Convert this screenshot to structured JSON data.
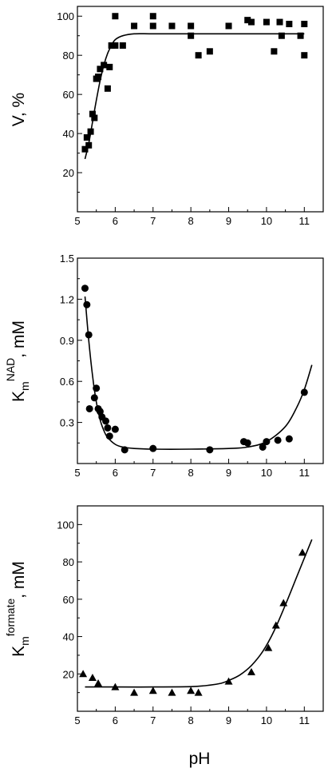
{
  "chart_data": [
    {
      "type": "scatter",
      "title": "",
      "xlabel": "",
      "ylabel": "V, %",
      "xlim": [
        5,
        11.5
      ],
      "ylim": [
        0,
        105
      ],
      "xticks": [
        "5",
        "6",
        "7",
        "8",
        "9",
        "10",
        "11"
      ],
      "yticks": [
        "20",
        "40",
        "60",
        "80",
        "100"
      ],
      "marker": "square",
      "legend": "none",
      "grid": false,
      "points": {
        "x": [
          5.2,
          5.25,
          5.3,
          5.35,
          5.4,
          5.45,
          5.5,
          5.55,
          5.6,
          5.7,
          5.8,
          5.85,
          5.9,
          6.0,
          6.0,
          6.2,
          6.5,
          7.0,
          7.0,
          7.5,
          8.0,
          8.0,
          8.2,
          8.5,
          9.0,
          9.5,
          9.6,
          10.0,
          10.2,
          10.35,
          10.4,
          10.6,
          10.9,
          11.0,
          11.0
        ],
        "y": [
          32,
          38,
          34,
          41,
          50,
          48,
          68,
          69,
          73,
          75,
          63,
          74,
          85,
          85,
          100,
          85,
          95,
          100,
          95,
          95,
          95,
          90,
          80,
          82,
          95,
          98,
          97,
          97,
          82,
          97,
          90,
          96,
          90,
          96,
          80
        ]
      },
      "fit_curve": {
        "x": [
          5.2,
          5.3,
          5.4,
          5.5,
          5.6,
          5.7,
          5.8,
          5.9,
          6.0,
          6.2,
          6.5,
          7.0,
          8.0,
          9.0,
          10.0,
          11.0
        ],
        "y": [
          27,
          35,
          46,
          57,
          67,
          75,
          81,
          85,
          88,
          90,
          91,
          91,
          91,
          91,
          91,
          91
        ]
      }
    },
    {
      "type": "scatter",
      "title": "",
      "xlabel": "",
      "ylabel_main": "K",
      "ylabel_sub": "m",
      "ylabel_sup": "NAD",
      "ylabel_unit": ", mM",
      "xlim": [
        5,
        11.5
      ],
      "ylim": [
        0,
        1.5
      ],
      "xticks": [
        "5",
        "6",
        "7",
        "8",
        "9",
        "10",
        "11"
      ],
      "yticks": [
        "0.3",
        "0.6",
        "0.9",
        "1.2",
        "1.5"
      ],
      "marker": "circle",
      "legend": "none",
      "grid": false,
      "points": {
        "x": [
          5.2,
          5.25,
          5.3,
          5.32,
          5.45,
          5.5,
          5.55,
          5.6,
          5.65,
          5.75,
          5.8,
          5.85,
          6.0,
          6.25,
          7.0,
          8.5,
          9.4,
          9.5,
          9.9,
          10.0,
          10.3,
          10.6,
          11.0
        ],
        "y": [
          1.28,
          1.16,
          0.94,
          0.4,
          0.48,
          0.55,
          0.4,
          0.38,
          0.34,
          0.31,
          0.26,
          0.2,
          0.25,
          0.1,
          0.11,
          0.1,
          0.16,
          0.15,
          0.12,
          0.16,
          0.17,
          0.18,
          0.52
        ]
      },
      "fit_curve": {
        "x": [
          5.2,
          5.3,
          5.4,
          5.5,
          5.6,
          5.7,
          5.8,
          6.0,
          6.2,
          6.5,
          7.0,
          8.0,
          9.0,
          9.5,
          10.0,
          10.5,
          10.8,
          11.0,
          11.2
        ],
        "y": [
          1.22,
          0.9,
          0.64,
          0.45,
          0.32,
          0.24,
          0.19,
          0.14,
          0.12,
          0.11,
          0.105,
          0.105,
          0.11,
          0.12,
          0.16,
          0.27,
          0.41,
          0.54,
          0.72
        ]
      }
    },
    {
      "type": "scatter",
      "title": "",
      "xlabel": "pH",
      "ylabel_main": "K",
      "ylabel_sub": "m",
      "ylabel_sup": "formate",
      "ylabel_unit": ", mM",
      "xlim": [
        5,
        11.5
      ],
      "ylim": [
        0,
        110
      ],
      "xticks": [
        "5",
        "6",
        "7",
        "8",
        "9",
        "10",
        "11"
      ],
      "yticks": [
        "20",
        "40",
        "60",
        "80",
        "100"
      ],
      "marker": "triangle",
      "legend": "none",
      "grid": false,
      "points": {
        "x": [
          5.15,
          5.4,
          5.55,
          6.0,
          6.5,
          7.0,
          7.5,
          8.0,
          8.2,
          9.0,
          9.6,
          10.05,
          10.25,
          10.45,
          10.95
        ],
        "y": [
          20,
          18,
          15,
          13,
          10,
          11,
          10,
          11,
          10,
          16,
          21,
          34,
          46,
          58,
          85
        ]
      },
      "fit_curve": {
        "x": [
          5.2,
          6.0,
          7.0,
          8.0,
          8.5,
          8.8,
          9.0,
          9.3,
          9.6,
          9.9,
          10.2,
          10.5,
          10.8,
          11.0,
          11.2
        ],
        "y": [
          13,
          13,
          13,
          13.2,
          14,
          15,
          16.5,
          19.5,
          24.5,
          32,
          43,
          57,
          72,
          82,
          92
        ]
      }
    }
  ]
}
